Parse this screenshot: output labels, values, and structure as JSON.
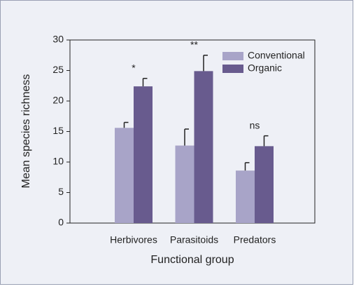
{
  "chart_data": {
    "type": "bar",
    "categories": [
      "Herbivores",
      "Parasitoids",
      "Predators"
    ],
    "series": [
      {
        "name": "Conventional",
        "color": "#a8a4c8",
        "values": [
          15.6,
          12.7,
          8.6
        ],
        "errors": [
          0.9,
          2.7,
          1.3
        ]
      },
      {
        "name": "Organic",
        "color": "#685b8e",
        "values": [
          22.4,
          24.9,
          12.6
        ],
        "errors": [
          1.3,
          2.6,
          1.7
        ]
      }
    ],
    "annotations": [
      "*",
      "**",
      "ns"
    ],
    "xlabel": "Functional group",
    "ylabel": "Mean species richness",
    "ylim": [
      0,
      30
    ],
    "yticks": [
      0,
      5,
      10,
      15,
      20,
      25,
      30
    ],
    "legend": "upper right"
  }
}
